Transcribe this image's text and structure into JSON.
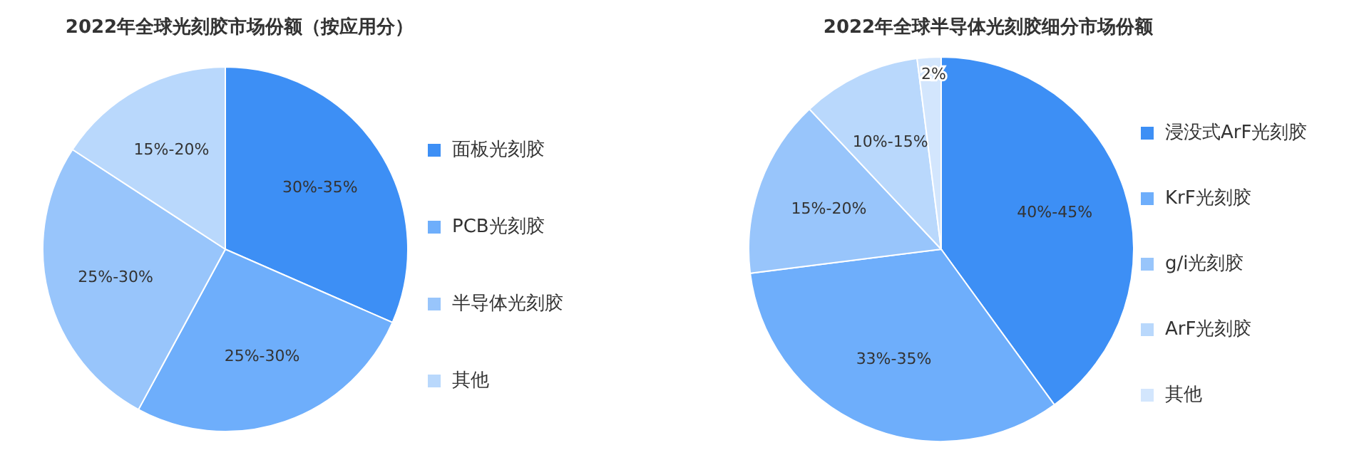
{
  "chart_data": [
    {
      "type": "pie",
      "title": "2022年全球光刻胶市场份额（按应用分）",
      "categories": [
        "面板光刻胶",
        "PCB光刻胶",
        "半导体光刻胶",
        "其他"
      ],
      "values": [
        30,
        25,
        25,
        15
      ],
      "value_labels": [
        "30%-35%",
        "25%-30%",
        "25%-30%",
        "15%-20%"
      ],
      "colors": [
        "#3d8ff5",
        "#6eaefb",
        "#98c5fb",
        "#b9d8fc"
      ],
      "legend": "right"
    },
    {
      "type": "pie",
      "title": "2022年全球半导体光刻胶细分市场份额",
      "categories": [
        "浸没式ArF光刻胶",
        "KrF光刻胶",
        "g/i光刻胶",
        "ArF光刻胶",
        "其他"
      ],
      "values": [
        40,
        33,
        15,
        10,
        2
      ],
      "value_labels": [
        "40%-45%",
        "33%-35%",
        "15%-20%",
        "10%-15%",
        "2%"
      ],
      "colors": [
        "#3d8ff5",
        "#6eaefb",
        "#98c5fb",
        "#b9d8fc",
        "#d3e6fd"
      ],
      "legend": "right"
    }
  ]
}
